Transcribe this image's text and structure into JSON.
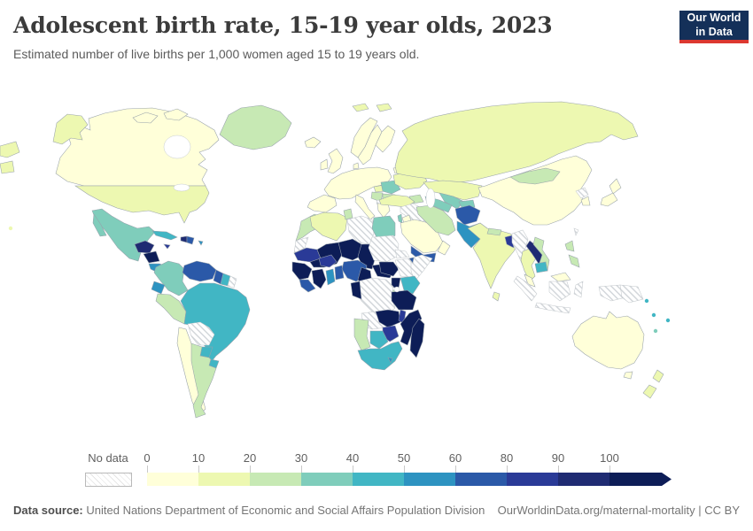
{
  "header": {
    "title": "Adolescent birth rate, 15-19 year olds, 2023",
    "subtitle": "Estimated number of live births per 1,000 women aged 15 to 19 years old.",
    "logo_line1": "Our World",
    "logo_line2": "in Data",
    "logo_bg": "#143059",
    "logo_accent": "#dc3830"
  },
  "chart_data": {
    "type": "choropleth",
    "title": "Adolescent birth rate, 15-19 year olds, 2023",
    "unit": "live births per 1,000 women aged 15 to 19",
    "year": "2023",
    "legend": {
      "no_data_label": "No data",
      "tick_labels": [
        "0",
        "10",
        "20",
        "30",
        "40",
        "50",
        "60",
        "80",
        "90",
        "100"
      ],
      "bins": [
        {
          "label": "0-10",
          "color": "#ffffd9"
        },
        {
          "label": "10-20",
          "color": "#edf8b1"
        },
        {
          "label": "20-30",
          "color": "#c7e9b4"
        },
        {
          "label": "30-40",
          "color": "#7fcdbb"
        },
        {
          "label": "40-50",
          "color": "#41b6c4"
        },
        {
          "label": "50-60",
          "color": "#2d93c1"
        },
        {
          "label": "60-80",
          "color": "#2b59a8"
        },
        {
          "label": "80-90",
          "color": "#2a3a97"
        },
        {
          "label": "90-100",
          "color": "#1f2b72"
        },
        {
          "label": "100+",
          "color": "#0d1d57"
        }
      ]
    },
    "regions": {
      "greenland": "20-30",
      "canada": "0-10",
      "arctic-islands-1": "0-10",
      "arctic-islands-2": "0-10",
      "alaska": "10-20",
      "usa": "10-20",
      "hawaii": "10-20",
      "mexico": "30-40",
      "guatemala-honduras": "90-100",
      "nicaragua": "100+",
      "costa-rica-panama": "50-60",
      "cuba": "40-50",
      "jamaica": "80-90",
      "haiti": "90-100",
      "dominican-republic": "60-80",
      "puerto-rico": "50-60",
      "colombia": "30-40",
      "venezuela": "60-80",
      "guyana": "60-80",
      "suriname": "40-50",
      "french-guiana": "No data",
      "ecuador": "50-60",
      "peru": "20-30",
      "brazil": "40-50",
      "bolivia": "No data",
      "paraguay": "40-50",
      "uruguay": "40-50",
      "chile": "0-10",
      "argentina": "20-30",
      "iceland": "0-10",
      "norway": "0-10",
      "sweden": "0-10",
      "finland": "0-10",
      "svalbard-1": "10-20",
      "svalbard-2": "10-20",
      "uk": "0-10",
      "ireland": "0-10",
      "denmark": "0-10",
      "central-europe": "0-10",
      "iberia": "0-10",
      "italy": "0-10",
      "hungary": "10-20",
      "romania": "30-40",
      "serbia": "20-30",
      "kosovo": "No data",
      "bulgaria": "20-30",
      "greece": "0-10",
      "ukraine": "10-20",
      "belarus": "0-10",
      "russia": "10-20",
      "russia-wrap-1": "10-20",
      "russia-wrap-2": "10-20",
      "kazakhstan": "10-20",
      "uzbekistan": "30-40",
      "turkmenistan": "30-40",
      "kyrgyzstan-tajikistan": "30-40",
      "caucasus": "20-30",
      "turkey": "10-20",
      "syria-iraq": "No data",
      "lebanon-israel": "30-40",
      "jordan": "0-10",
      "saudi-arabia": "0-10",
      "yemen": "60-80",
      "oman": "0-10",
      "iran": "20-30",
      "afghanistan": "60-80",
      "pakistan": "50-60",
      "india": "10-20",
      "nepal-bhutan": "20-30",
      "sri-lanka": "10-20",
      "bangladesh": "80-90",
      "myanmar": "No data",
      "thailand": "10-20",
      "laos": "90-100",
      "vietnam": "20-30",
      "cambodia": "40-50",
      "china": "0-10",
      "mongolia": "20-30",
      "north-korea": "No data",
      "south-korea": "0-10",
      "japan-north": "0-10",
      "japan-south": "0-10",
      "taiwan": "No data",
      "philippines-north": "20-30",
      "philippines-south": "20-30",
      "malaysia-peninsula": "0-10",
      "malaysia-borneo": "0-10",
      "sumatra": "No data",
      "kalimantan": "No data",
      "java": "No data",
      "sulawesi": "No data",
      "west-papua": "No data",
      "papua-new-guinea": "No data",
      "solomon-islands": "40-50",
      "vanuatu": "40-50",
      "fiji": "40-50",
      "new-caledonia": "30-40",
      "australia": "0-10",
      "tasmania": "0-10",
      "new-zealand-north": "10-20",
      "new-zealand-south": "10-20",
      "morocco": "20-30",
      "western-sahara": "No data",
      "algeria": "10-20",
      "tunisia": "20-30",
      "libya": "No data",
      "egypt": "30-40",
      "mauritania": "80-90",
      "mali": "100+",
      "niger": "100+",
      "chad": "100+",
      "senegal-guinea": "100+",
      "sierra-leone-liberia": "60-80",
      "cote-divoire": "100+",
      "ghana": "50-60",
      "togo-benin": "60-80",
      "burkina-faso": "80-90",
      "nigeria": "60-80",
      "cameroon": "100+",
      "central-african-republic": "100+",
      "sudan": "No data",
      "eritrea": "No data",
      "ethiopia": "No data",
      "somalia": "No data",
      "djibouti": "60-80",
      "south-sudan": "100+",
      "kenya": "40-50",
      "uganda": "100+",
      "rwanda-burundi": "20-30",
      "dr-congo": "No data",
      "congo-gabon": "100+",
      "tanzania": "100+",
      "angola": "No data",
      "zambia": "100+",
      "malawi": "80-90",
      "mozambique": "100+",
      "zimbabwe": "80-90",
      "botswana": "40-50",
      "namibia": "20-30",
      "south-africa": "40-50",
      "lesotho": "50-60",
      "madagascar": "100+"
    }
  },
  "footer": {
    "datasource_label": "Data source:",
    "datasource": "United Nations Department of Economic and Social Affairs Population Division",
    "link": "OurWorldinData.org/maternal-mortality | CC BY"
  }
}
